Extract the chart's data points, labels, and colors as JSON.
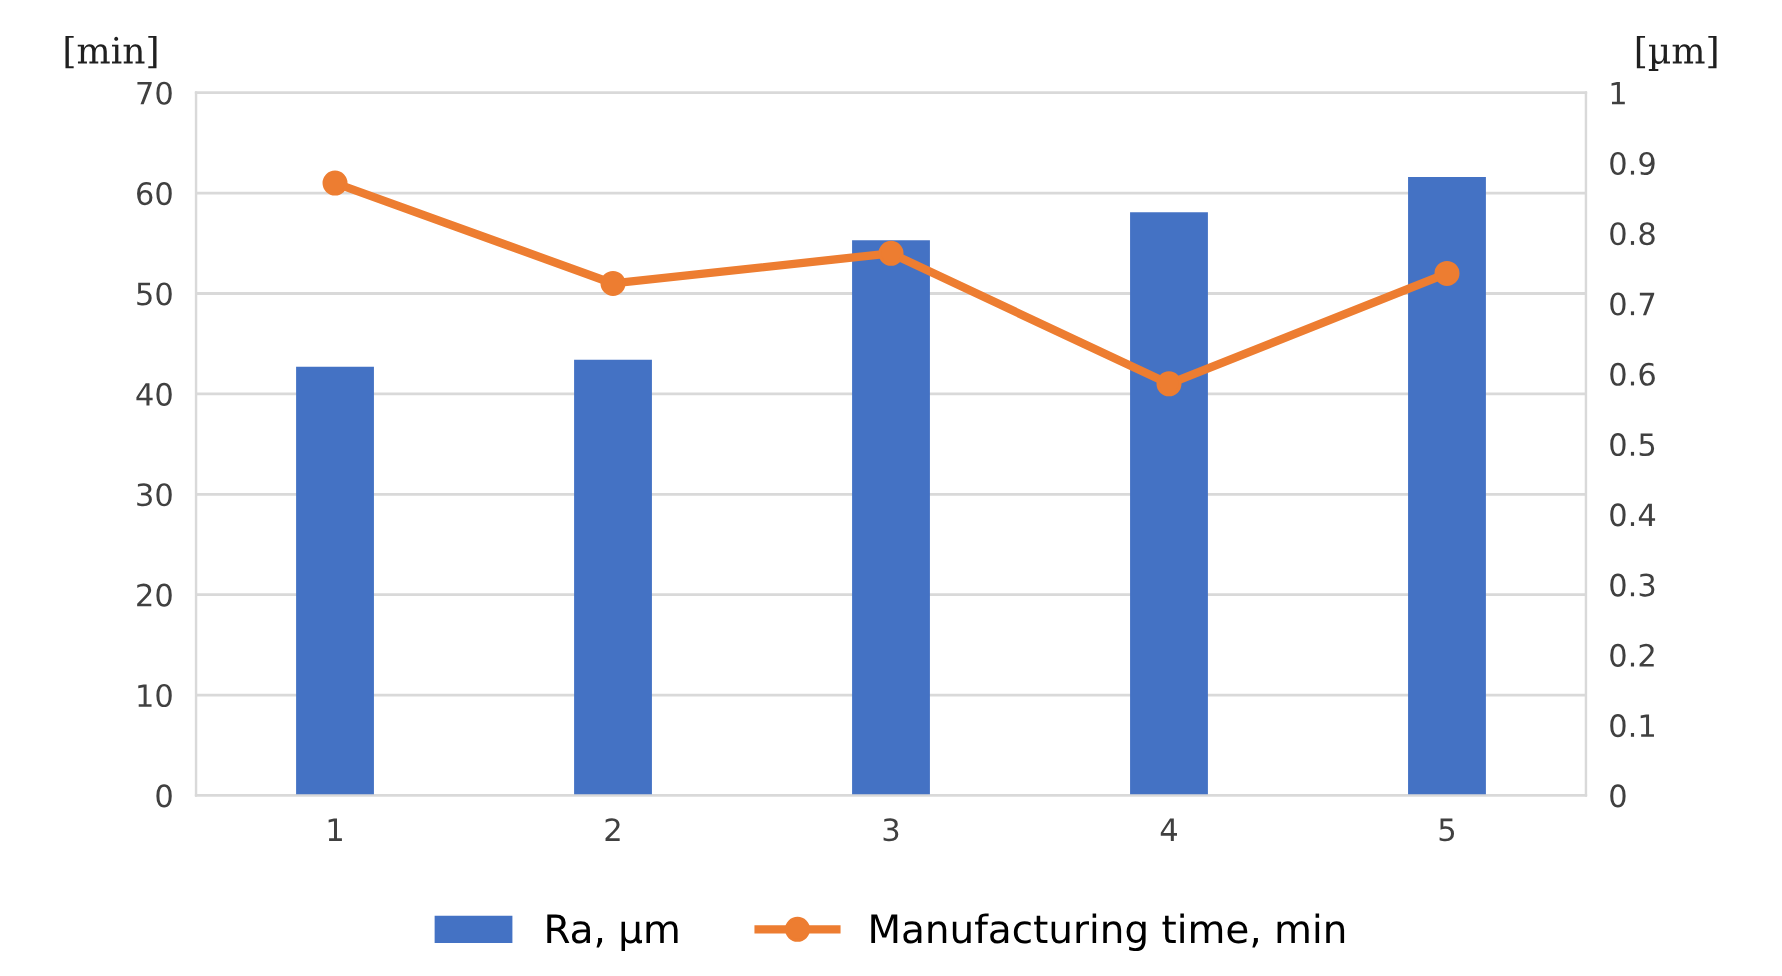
{
  "chart_data": {
    "type": "bar",
    "categories": [
      "1",
      "2",
      "3",
      "4",
      "5"
    ],
    "ylabel": "[min]",
    "y2label": "[µm]",
    "ylim": [
      0,
      70
    ],
    "yticks": [
      0,
      10,
      20,
      30,
      40,
      50,
      60,
      70
    ],
    "y2lim": [
      0,
      1
    ],
    "y2ticks": [
      0,
      0.1,
      0.2,
      0.3,
      0.4,
      0.5,
      0.6,
      0.7,
      0.8,
      0.9,
      1
    ],
    "series": [
      {
        "name": "Ra, µm",
        "axis": "y2",
        "color": "#4472c4",
        "values": [
          0.61,
          0.62,
          0.79,
          0.83,
          0.88
        ]
      },
      {
        "name": "Manufacturing time, min",
        "type": "line",
        "axis": "y",
        "color": "#ed7d31",
        "marker": "circle",
        "values": [
          61,
          51,
          54,
          41,
          52
        ]
      }
    ],
    "grid": "y",
    "legend": "bottom"
  }
}
